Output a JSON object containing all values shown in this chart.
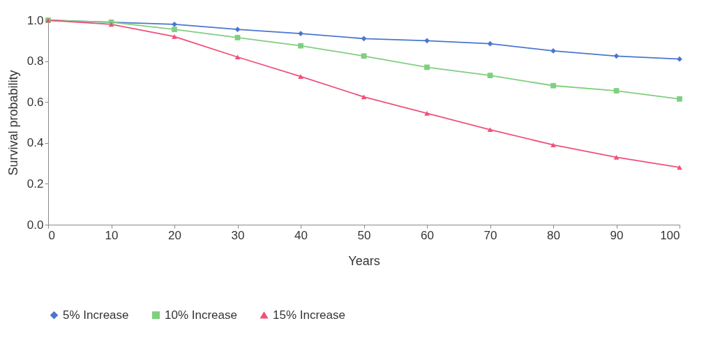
{
  "chart_data": {
    "type": "line",
    "xlabel": "Years",
    "ylabel": "Survival probability",
    "x": [
      0,
      10,
      20,
      30,
      40,
      50,
      60,
      70,
      80,
      90,
      100
    ],
    "xlim": [
      0,
      100
    ],
    "xticks": [
      0,
      10,
      20,
      30,
      40,
      50,
      60,
      70,
      80,
      90,
      100
    ],
    "ylim": [
      0,
      1
    ],
    "yticks": [
      {
        "value": 0,
        "label": "0.0"
      },
      {
        "value": 0.2,
        "label": "0.2"
      },
      {
        "value": 0.4,
        "label": "0.4"
      },
      {
        "value": 0.6,
        "label": "0.6"
      },
      {
        "value": 0.8,
        "label": "0.8"
      },
      {
        "value": 1,
        "label": "1.0"
      }
    ],
    "grid": false,
    "legend": "bottom",
    "line_style": "solid",
    "series": [
      {
        "name": "5% Increase",
        "color": "#4a76d0",
        "marker": "diamond",
        "values": [
          1.0,
          0.99,
          0.98,
          0.955,
          0.935,
          0.91,
          0.9,
          0.885,
          0.85,
          0.825,
          0.81
        ]
      },
      {
        "name": "10% Increase",
        "color": "#7fcf7f",
        "marker": "square",
        "values": [
          1.0,
          0.99,
          0.955,
          0.915,
          0.875,
          0.825,
          0.77,
          0.73,
          0.68,
          0.655,
          0.615
        ]
      },
      {
        "name": "15% Increase",
        "color": "#f0507a",
        "marker": "triangle",
        "values": [
          1.0,
          0.98,
          0.92,
          0.82,
          0.725,
          0.625,
          0.545,
          0.465,
          0.39,
          0.33,
          0.28
        ]
      }
    ]
  }
}
